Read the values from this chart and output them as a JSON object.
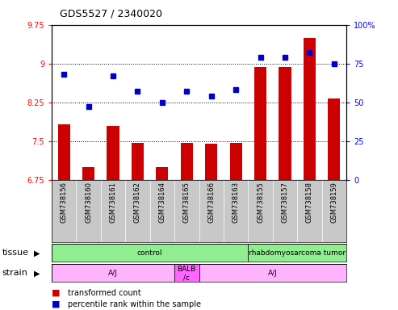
{
  "title": "GDS5527 / 2340020",
  "samples": [
    "GSM738156",
    "GSM738160",
    "GSM738161",
    "GSM738162",
    "GSM738164",
    "GSM738165",
    "GSM738166",
    "GSM738163",
    "GSM738155",
    "GSM738157",
    "GSM738158",
    "GSM738159"
  ],
  "red_values": [
    7.82,
    7.0,
    7.8,
    7.47,
    7.0,
    7.47,
    7.45,
    7.47,
    8.93,
    8.93,
    9.5,
    8.32
  ],
  "blue_values": [
    68,
    47,
    67,
    57,
    50,
    57,
    54,
    58,
    79,
    79,
    82,
    75
  ],
  "ylim_left": [
    6.75,
    9.75
  ],
  "ylim_right": [
    0,
    100
  ],
  "yticks_left": [
    6.75,
    7.5,
    8.25,
    9.0,
    9.75
  ],
  "yticks_right": [
    0,
    25,
    50,
    75,
    100
  ],
  "ytick_labels_left": [
    "6.75",
    "7.5",
    "8.25",
    "9",
    "9.75"
  ],
  "ytick_labels_right": [
    "0",
    "25",
    "50",
    "75",
    "100%"
  ],
  "hlines": [
    7.5,
    8.25,
    9.0
  ],
  "tissue_groups": [
    {
      "label": "control",
      "start": 0,
      "end": 8,
      "color": "#90EE90"
    },
    {
      "label": "rhabdomyosarcoma tumor",
      "start": 8,
      "end": 12,
      "color": "#90EE90"
    }
  ],
  "strain_groups": [
    {
      "label": "A/J",
      "start": 0,
      "end": 5,
      "color": "#FFB3FF"
    },
    {
      "label": "BALB\n/c",
      "start": 5,
      "end": 6,
      "color": "#FF66FF"
    },
    {
      "label": "A/J",
      "start": 6,
      "end": 12,
      "color": "#FFB3FF"
    }
  ],
  "bar_color": "#CC0000",
  "dot_color": "#0000CC",
  "background_color": "#FFFFFF",
  "label_bg": "#C8C8C8",
  "tissue_label": "tissue",
  "strain_label": "strain",
  "legend_red": "transformed count",
  "legend_blue": "percentile rank within the sample"
}
